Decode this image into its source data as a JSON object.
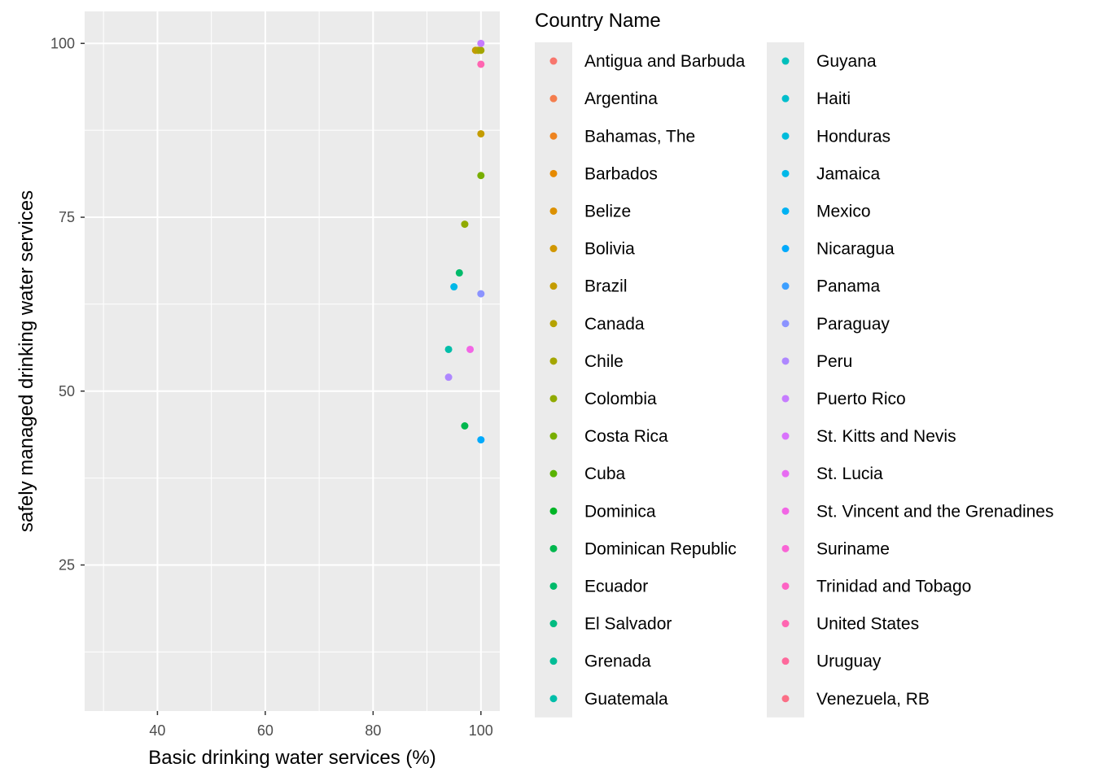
{
  "chart_data": {
    "type": "scatter",
    "xlabel": "Basic drinking water services (%)",
    "ylabel": "safely managed drinking water services",
    "xlim": [
      26.5,
      103.5
    ],
    "ylim": [
      4,
      104.6
    ],
    "x_ticks": [
      40,
      60,
      80,
      100
    ],
    "y_ticks": [
      25,
      50,
      75,
      100
    ],
    "x_minor": [
      30,
      50,
      70,
      90
    ],
    "y_minor": [
      12.5,
      37.5,
      62.5,
      87.5
    ],
    "grid": true,
    "legend": {
      "title": "Country Name",
      "position": "right",
      "columns": 2,
      "entries": [
        {
          "label": "Antigua and Barbuda",
          "color": "#F8766D"
        },
        {
          "label": "Argentina",
          "color": "#F47D4D"
        },
        {
          "label": "Bahamas, The",
          "color": "#EE8420"
        },
        {
          "label": "Barbados",
          "color": "#E68A00"
        },
        {
          "label": "Belize",
          "color": "#DC9100"
        },
        {
          "label": "Bolivia",
          "color": "#D19700"
        },
        {
          "label": "Brazil",
          "color": "#C49C00"
        },
        {
          "label": "Canada",
          "color": "#B5A200"
        },
        {
          "label": "Chile",
          "color": "#A4A600"
        },
        {
          "label": "Colombia",
          "color": "#90AA00"
        },
        {
          "label": "Costa Rica",
          "color": "#78AE00"
        },
        {
          "label": "Cuba",
          "color": "#58B200"
        },
        {
          "label": "Dominica",
          "color": "#00B526"
        },
        {
          "label": "Dominican Republic",
          "color": "#00B74E"
        },
        {
          "label": "Ecuador",
          "color": "#00BA6A"
        },
        {
          "label": "El Salvador",
          "color": "#00BC81"
        },
        {
          "label": "Grenada",
          "color": "#00BD96"
        },
        {
          "label": "Guatemala",
          "color": "#00BEA9"
        },
        {
          "label": "Guyana",
          "color": "#00BFBB"
        },
        {
          "label": "Haiti",
          "color": "#00BECC"
        },
        {
          "label": "Honduras",
          "color": "#00BCDB"
        },
        {
          "label": "Jamaica",
          "color": "#00B8E8"
        },
        {
          "label": "Mexico",
          "color": "#00B2F3"
        },
        {
          "label": "Nicaragua",
          "color": "#00AAFC"
        },
        {
          "label": "Panama",
          "color": "#3D9FFF"
        },
        {
          "label": "Paraguay",
          "color": "#8B93FF"
        },
        {
          "label": "Peru",
          "color": "#AE87FF"
        },
        {
          "label": "Puerto Rico",
          "color": "#C67CFF"
        },
        {
          "label": "St. Kitts and Nevis",
          "color": "#D973FC"
        },
        {
          "label": "St. Lucia",
          "color": "#E76CF2"
        },
        {
          "label": "St. Vincent and the Grenadines",
          "color": "#F266E5"
        },
        {
          "label": "Suriname",
          "color": "#F964D5"
        },
        {
          "label": "Trinidad and Tobago",
          "color": "#FD64C4"
        },
        {
          "label": "United States",
          "color": "#FF65B1"
        },
        {
          "label": "Uruguay",
          "color": "#FE699C"
        },
        {
          "label": "Venezuela, RB",
          "color": "#FB6F86"
        }
      ]
    },
    "points": [
      {
        "x": 99,
        "y": 99,
        "color": "#C49C00"
      },
      {
        "x": 99.5,
        "y": 99,
        "color": "#B5A200"
      },
      {
        "x": 100,
        "y": 99,
        "color": "#A4A600"
      },
      {
        "x": 100,
        "y": 100,
        "color": "#C67CFF"
      },
      {
        "x": 100,
        "y": 97,
        "color": "#FF65B1"
      },
      {
        "x": 100,
        "y": 87,
        "color": "#C49C00"
      },
      {
        "x": 100,
        "y": 81,
        "color": "#78AE00"
      },
      {
        "x": 97,
        "y": 74,
        "color": "#90AA00"
      },
      {
        "x": 96,
        "y": 67,
        "color": "#00BA6A"
      },
      {
        "x": 95,
        "y": 65,
        "color": "#00B8E8"
      },
      {
        "x": 100,
        "y": 64,
        "color": "#8B93FF"
      },
      {
        "x": 94,
        "y": 56,
        "color": "#00BEA9"
      },
      {
        "x": 98,
        "y": 56,
        "color": "#F266E5"
      },
      {
        "x": 94,
        "y": 52,
        "color": "#AE87FF"
      },
      {
        "x": 97,
        "y": 45,
        "color": "#00B74E"
      },
      {
        "x": 100,
        "y": 43,
        "color": "#00AAFC"
      }
    ]
  }
}
